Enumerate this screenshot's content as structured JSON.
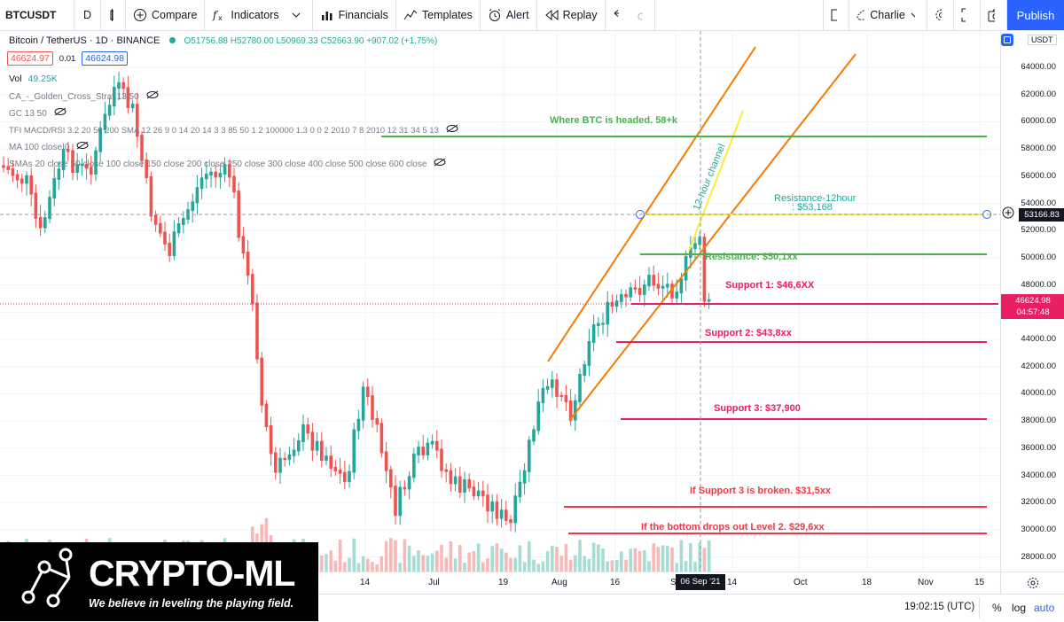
{
  "toolbar": {
    "symbol": "BTCUSDT",
    "interval": "D",
    "compare": "Compare",
    "indicators": "Indicators",
    "financials": "Financials",
    "templates": "Templates",
    "alert": "Alert",
    "replay": "Replay",
    "layout_name": "Charlie",
    "publish": "Publish"
  },
  "legend": {
    "title": "Bitcoin / TetherUS · 1D · BINANCE",
    "ohlc": "O51756.88 H52780.00 L50969.33 C52663.90 +907.02 (+1.75%)",
    "sell_price": "46624.97",
    "spread": "0.01",
    "buy_price": "46624.98",
    "vol_label": "Vol",
    "vol_value": "49.25K",
    "indicators": [
      "CA_-_Golden_Cross_Strat 13 50",
      "GC 13 50",
      "TFI MACD/RSI 3.2 20 50 200 SMA 12 26 9 0 14 20 14 3 3 85 50 1 2 100000 1.3 0 0 2 2010 7 8 2010 12 31 34 5 13",
      "MA 100 close 0",
      "SMAs 20 close 50 close 100 close 150 close 200 close 250 close 300 close 400 close 500 close 600 close"
    ]
  },
  "price_axis": {
    "currency": "USDT",
    "ticks": [
      "64000.00",
      "62000.00",
      "60000.00",
      "58000.00",
      "56000.00",
      "54000.00",
      "52000.00",
      "50000.00",
      "48000.00",
      "46000.00",
      "44000.00",
      "42000.00",
      "40000.00",
      "38000.00",
      "36000.00",
      "34000.00",
      "32000.00",
      "30000.00",
      "28000.00"
    ],
    "crosshair_label": "53166.83",
    "last_price": "46624.98",
    "countdown": "04:57:48"
  },
  "time_axis": {
    "ticks": [
      "14",
      "Jul",
      "19",
      "Aug",
      "16",
      "S",
      "14",
      "Oct",
      "18",
      "Nov",
      "15"
    ],
    "crosshair_label": "06 Sep '21"
  },
  "annotations": {
    "target": "Where BTC is headed. 58+k",
    "resistance_12h_title": "Resistance-12hour",
    "resistance_12h_value": ": $53,168",
    "channel": "12-hour channel",
    "resistance": "Resistance:  $50,1xx",
    "support1": "Support 1:   $46,6XX",
    "support2": "Support 2:  $43,8xx",
    "support3": "Support 3:  $37,900",
    "broken": "If Support 3 is broken. $31,5xx",
    "bottom": "If the bottom drops out Level 2. $29,6xx"
  },
  "status": {
    "time": "19:02:15 (UTC)",
    "percent": "%",
    "log": "log",
    "auto": "auto"
  },
  "logo": {
    "name": "CRYPTO-ML",
    "tagline": "We believe in leveling the playing field."
  },
  "colors": {
    "up": "#26a69a",
    "down": "#ef5350",
    "accent": "#2962ff",
    "green_line": "#4caf50",
    "pink_line": "#e91e63",
    "red_line": "#f23645",
    "orange": "#f57c00",
    "yellow": "#ffeb3b"
  }
}
